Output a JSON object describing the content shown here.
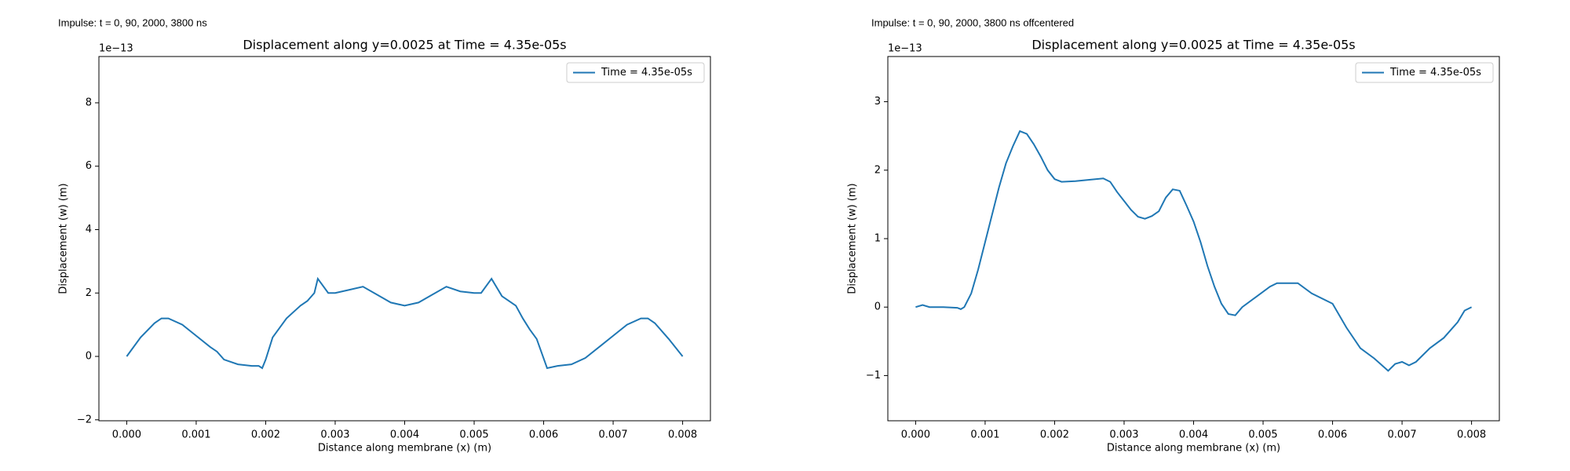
{
  "chart_data": [
    {
      "type": "line",
      "annotation": "Impulse: t = 0, 90, 2000, 3800 ns",
      "title": "Displacement along y=0.0025 at Time = 4.35e-05s",
      "x_label": "Distance along membrane (x) (m)",
      "y_label": "Displacement (w) (m)",
      "y_offset_label": "1e−13",
      "legend": "upper right",
      "xlim": [
        -0.0004,
        0.0084
      ],
      "xticks": [
        {
          "value": 0,
          "label": "0.000"
        },
        {
          "value": 0.001,
          "label": "0.001"
        },
        {
          "value": 0.002,
          "label": "0.002"
        },
        {
          "value": 0.003,
          "label": "0.003"
        },
        {
          "value": 0.004,
          "label": "0.004"
        },
        {
          "value": 0.005,
          "label": "0.005"
        },
        {
          "value": 0.006,
          "label": "0.006"
        },
        {
          "value": 0.007,
          "label": "0.007"
        },
        {
          "value": 0.008,
          "label": "0.008"
        }
      ],
      "ylim": [
        -2.03,
        9.46
      ],
      "yticks": [
        {
          "value": -2,
          "label": "−2"
        },
        0,
        2,
        4,
        6,
        8
      ],
      "x": [
        0,
        0.0002,
        0.0004,
        0.0005,
        0.0006,
        0.0008,
        0.001,
        0.0012,
        0.0013,
        0.0014,
        0.0016,
        0.0018,
        0.0019,
        0.00195,
        0.002,
        0.0021,
        0.0023,
        0.0025,
        0.0026,
        0.0027,
        0.00275,
        0.0029,
        0.003,
        0.0032,
        0.0034,
        0.0036,
        0.0038,
        0.004,
        0.0042,
        0.0044,
        0.0046,
        0.0048,
        0.005,
        0.0051,
        0.00525,
        0.0054,
        0.0056,
        0.0057,
        0.0058,
        0.0059,
        0.00605,
        0.0062,
        0.0064,
        0.0066,
        0.0068,
        0.007,
        0.0072,
        0.0074,
        0.0075,
        0.0076,
        0.0078,
        0.008
      ],
      "series": [
        {
          "name": "Time = 4.35e-05s",
          "color": "#1f77b4",
          "values": [
            0,
            0.6,
            1.05,
            1.2,
            1.2,
            1.0,
            0.65,
            0.3,
            0.15,
            -0.1,
            -0.25,
            -0.3,
            -0.3,
            -0.37,
            -0.1,
            0.6,
            1.2,
            1.6,
            1.75,
            2.0,
            2.45,
            2.0,
            2.0,
            2.1,
            2.2,
            1.95,
            1.7,
            1.6,
            1.7,
            1.95,
            2.2,
            2.05,
            2.0,
            2.0,
            2.45,
            1.9,
            1.6,
            1.2,
            0.85,
            0.55,
            -0.37,
            -0.3,
            -0.25,
            -0.05,
            0.3,
            0.65,
            1.0,
            1.2,
            1.2,
            1.05,
            0.55,
            0
          ]
        }
      ]
    },
    {
      "type": "line",
      "annotation": "Impulse: t = 0, 90, 2000, 3800 ns offcentered",
      "title": "Displacement along y=0.0025 at Time = 4.35e-05s",
      "x_label": "Distance along membrane (x) (m)",
      "y_label": "Displacement (w) (m)",
      "y_offset_label": "1e−13",
      "legend": "upper right",
      "xlim": [
        -0.0004,
        0.0084
      ],
      "xticks": [
        {
          "value": 0,
          "label": "0.000"
        },
        {
          "value": 0.001,
          "label": "0.001"
        },
        {
          "value": 0.002,
          "label": "0.002"
        },
        {
          "value": 0.003,
          "label": "0.003"
        },
        {
          "value": 0.004,
          "label": "0.004"
        },
        {
          "value": 0.005,
          "label": "0.005"
        },
        {
          "value": 0.006,
          "label": "0.006"
        },
        {
          "value": 0.007,
          "label": "0.007"
        },
        {
          "value": 0.008,
          "label": "0.008"
        }
      ],
      "ylim": [
        -1.66,
        3.66
      ],
      "yticks": [
        {
          "value": -1,
          "label": "−1"
        },
        0,
        1,
        2,
        3
      ],
      "x": [
        0,
        0.0001,
        0.0002,
        0.0004,
        0.0006,
        0.00065,
        0.0007,
        0.0008,
        0.0009,
        0.001,
        0.0011,
        0.0012,
        0.0013,
        0.0014,
        0.0015,
        0.0016,
        0.0017,
        0.0018,
        0.0019,
        0.002,
        0.0021,
        0.0023,
        0.0025,
        0.0027,
        0.0028,
        0.0029,
        0.003,
        0.0031,
        0.0032,
        0.0033,
        0.0034,
        0.0035,
        0.0036,
        0.0037,
        0.0038,
        0.0039,
        0.004,
        0.0041,
        0.0042,
        0.0043,
        0.0044,
        0.0045,
        0.0046,
        0.0047,
        0.0049,
        0.0051,
        0.0052,
        0.0054,
        0.0055,
        0.0057,
        0.006,
        0.0062,
        0.0064,
        0.0066,
        0.0068,
        0.0069,
        0.007,
        0.0071,
        0.0072,
        0.0074,
        0.0076,
        0.0078,
        0.0079,
        0.008
      ],
      "series": [
        {
          "name": "Time = 4.35e-05s",
          "color": "#1f77b4",
          "values": [
            0,
            0.03,
            0.0,
            0.0,
            -0.01,
            -0.03,
            0.0,
            0.2,
            0.55,
            0.95,
            1.35,
            1.75,
            2.1,
            2.35,
            2.57,
            2.53,
            2.38,
            2.2,
            2.0,
            1.87,
            1.83,
            1.84,
            1.86,
            1.88,
            1.83,
            1.68,
            1.55,
            1.42,
            1.32,
            1.29,
            1.33,
            1.4,
            1.6,
            1.72,
            1.7,
            1.48,
            1.25,
            0.95,
            0.6,
            0.3,
            0.05,
            -0.1,
            -0.12,
            0.0,
            0.15,
            0.3,
            0.35,
            0.35,
            0.35,
            0.2,
            0.05,
            -0.3,
            -0.6,
            -0.75,
            -0.93,
            -0.83,
            -0.8,
            -0.85,
            -0.8,
            -0.6,
            -0.45,
            -0.22,
            -0.05,
            0.0
          ]
        }
      ]
    }
  ]
}
